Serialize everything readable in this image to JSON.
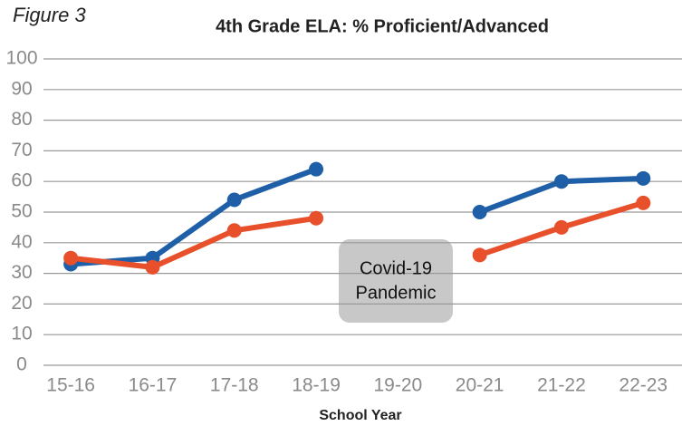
{
  "chart_data": {
    "type": "line",
    "figure_label": "Figure 3",
    "title": "4th Grade ELA: % Proficient/Advanced",
    "x_label": "School Year",
    "categories": [
      "15-16",
      "16-17",
      "17-18",
      "18-19",
      "19-20",
      "20-21",
      "21-22",
      "22-23"
    ],
    "series": [
      {
        "color": "#1f5fa8",
        "values": [
          33,
          35,
          54,
          64,
          null,
          50,
          60,
          61
        ]
      },
      {
        "color": "#e8502b",
        "values": [
          35,
          32,
          44,
          48,
          null,
          36,
          45,
          53
        ]
      }
    ],
    "annotation": [
      "Covid-19",
      "Pandemic"
    ],
    "ylim": [
      0,
      100
    ],
    "yticks": [
      0,
      10,
      20,
      30,
      40,
      50,
      60,
      70,
      80,
      90,
      100
    ],
    "grid": true
  }
}
